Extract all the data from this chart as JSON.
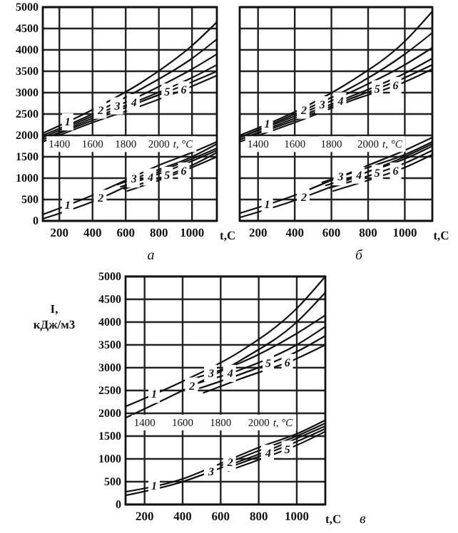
{
  "chart_data": [
    {
      "type": "line",
      "xlabel": "t,C",
      "x2label": "t, °C",
      "annotations": [
        "а"
      ],
      "xlim": [
        100,
        1150
      ],
      "xticks": [
        200,
        400,
        600,
        800,
        1000
      ],
      "x2lim": [
        1300,
        2350
      ],
      "x2ticks": [
        1400,
        1600,
        1800,
        2000
      ],
      "ylim": [
        0,
        5000
      ],
      "yticks": [
        0,
        500,
        1000,
        1500,
        2000,
        2500,
        3000,
        3500,
        4000,
        4500,
        5000
      ],
      "grid": true,
      "series": [
        {
          "name": "1",
          "color": "#111111",
          "axis": "x2",
          "x": [
            1300,
            1600,
            1900,
            2200,
            2350
          ],
          "values": [
            2050,
            2600,
            3250,
            4100,
            4650
          ]
        },
        {
          "name": "2",
          "color": "#111111",
          "axis": "x2",
          "x": [
            1300,
            1600,
            1900,
            2200,
            2350
          ],
          "values": [
            2000,
            2500,
            3100,
            3800,
            4250
          ]
        },
        {
          "name": "3",
          "color": "#111111",
          "axis": "x2",
          "x": [
            1300,
            1600,
            1900,
            2200,
            2350
          ],
          "values": [
            1950,
            2450,
            2950,
            3550,
            3900
          ]
        },
        {
          "name": "4",
          "color": "#111111",
          "axis": "x2",
          "x": [
            1300,
            1600,
            1900,
            2200,
            2350
          ],
          "values": [
            1900,
            2400,
            2850,
            3350,
            3650
          ]
        },
        {
          "name": "5",
          "color": "#111111",
          "axis": "x2",
          "x": [
            1300,
            1600,
            1900,
            2200,
            2350
          ],
          "values": [
            1900,
            2350,
            2800,
            3250,
            3500
          ]
        },
        {
          "name": "6",
          "color": "#111111",
          "axis": "x2",
          "x": [
            1300,
            1600,
            1900,
            2200,
            2350
          ],
          "values": [
            1850,
            2300,
            2700,
            3150,
            3400
          ]
        },
        {
          "name": "1",
          "color": "#111111",
          "x": [
            100,
            400,
            600,
            800,
            1000,
            1150
          ],
          "values": [
            150,
            600,
            950,
            1300,
            1600,
            1850
          ]
        },
        {
          "name": "2",
          "color": "#111111",
          "x": [
            100,
            400,
            600,
            800,
            1000,
            1150
          ],
          "values": [
            50,
            450,
            800,
            1150,
            1450,
            1700
          ]
        },
        {
          "name": "3",
          "color": "#111111",
          "x": [
            550,
            800,
            1000,
            1150
          ],
          "values": [
            850,
            1200,
            1500,
            1800
          ]
        },
        {
          "name": "4",
          "color": "#111111",
          "x": [
            570,
            800,
            1000,
            1150
          ],
          "values": [
            800,
            1100,
            1400,
            1650
          ]
        },
        {
          "name": "5",
          "color": "#111111",
          "x": [
            590,
            800,
            1000,
            1150
          ],
          "values": [
            750,
            1000,
            1300,
            1600
          ]
        },
        {
          "name": "6",
          "color": "#111111",
          "x": [
            610,
            800,
            1000,
            1150
          ],
          "values": [
            700,
            950,
            1250,
            1500
          ]
        }
      ]
    },
    {
      "type": "line",
      "xlabel": "t,C",
      "x2label": "t, °C",
      "annotations": [
        "б"
      ],
      "xlim": [
        100,
        1150
      ],
      "xticks": [
        200,
        400,
        600,
        800,
        1000
      ],
      "x2lim": [
        1300,
        2350
      ],
      "x2ticks": [
        1400,
        1600,
        1800,
        2000
      ],
      "ylim": [
        0,
        5000
      ],
      "yticks": [
        0,
        500,
        1000,
        1500,
        2000,
        2500,
        3000,
        3500,
        4000,
        4500,
        5000
      ],
      "grid": true,
      "tick_labels": "x",
      "series": [
        {
          "name": "1",
          "color": "#111111",
          "axis": "x2",
          "x": [
            1300,
            1600,
            1900,
            2200,
            2350
          ],
          "values": [
            2000,
            2550,
            3250,
            4200,
            4900
          ]
        },
        {
          "name": "2",
          "color": "#111111",
          "axis": "x2",
          "x": [
            1300,
            1600,
            1900,
            2200,
            2350
          ],
          "values": [
            1950,
            2500,
            3100,
            3900,
            4400
          ]
        },
        {
          "name": "3",
          "color": "#111111",
          "axis": "x2",
          "x": [
            1300,
            1600,
            1900,
            2200,
            2350
          ],
          "values": [
            1950,
            2450,
            3000,
            3650,
            4050
          ]
        },
        {
          "name": "4",
          "color": "#111111",
          "axis": "x2",
          "x": [
            1300,
            1600,
            1900,
            2200,
            2350
          ],
          "values": [
            1900,
            2400,
            2900,
            3450,
            3800
          ]
        },
        {
          "name": "5",
          "color": "#111111",
          "axis": "x2",
          "x": [
            1300,
            1600,
            1900,
            2200,
            2350
          ],
          "values": [
            1900,
            2350,
            2850,
            3350,
            3650
          ]
        },
        {
          "name": "6",
          "color": "#111111",
          "axis": "x2",
          "x": [
            1300,
            1600,
            1900,
            2200,
            2350
          ],
          "values": [
            1850,
            2300,
            2800,
            3250,
            3550
          ]
        },
        {
          "name": "1",
          "color": "#111111",
          "x": [
            100,
            400,
            600,
            800,
            1000,
            1150
          ],
          "values": [
            180,
            600,
            950,
            1300,
            1650,
            1950
          ]
        },
        {
          "name": "2",
          "color": "#111111",
          "x": [
            100,
            400,
            600,
            800,
            1000,
            1150
          ],
          "values": [
            80,
            480,
            800,
            1150,
            1500,
            1800
          ]
        },
        {
          "name": "3",
          "color": "#111111",
          "x": [
            550,
            800,
            1000,
            1150
          ],
          "values": [
            900,
            1250,
            1550,
            1850
          ]
        },
        {
          "name": "4",
          "color": "#111111",
          "x": [
            570,
            800,
            1000,
            1150
          ],
          "values": [
            830,
            1150,
            1450,
            1750
          ]
        },
        {
          "name": "5",
          "color": "#111111",
          "x": [
            590,
            800,
            1000,
            1150
          ],
          "values": [
            770,
            1050,
            1350,
            1650
          ]
        },
        {
          "name": "6",
          "color": "#111111",
          "x": [
            610,
            800,
            1000,
            1150
          ],
          "values": [
            700,
            950,
            1250,
            1550
          ]
        }
      ]
    },
    {
      "type": "line",
      "xlabel": "t,C",
      "x2label": "t, °C",
      "ylabel": "I, кДж/м3",
      "annotations": [
        "в"
      ],
      "xlim": [
        100,
        1150
      ],
      "xticks": [
        200,
        400,
        600,
        800,
        1000
      ],
      "x2lim": [
        1300,
        2350
      ],
      "x2ticks": [
        1400,
        1600,
        1800,
        2000
      ],
      "ylim": [
        0,
        5000
      ],
      "yticks": [
        0,
        500,
        1000,
        1500,
        2000,
        2500,
        3000,
        3500,
        4000,
        4500,
        5000
      ],
      "grid": true,
      "series": [
        {
          "name": "1",
          "color": "#111111",
          "axis": "x2",
          "x": [
            1300,
            1600,
            1900,
            2200,
            2350
          ],
          "values": [
            2150,
            2700,
            3350,
            4300,
            5000
          ]
        },
        {
          "name": "2",
          "color": "#111111",
          "axis": "x2",
          "x": [
            1300,
            1600,
            1900,
            2200,
            2350
          ],
          "values": [
            1900,
            2500,
            3150,
            4000,
            4650
          ]
        },
        {
          "name": "3",
          "color": "#111111",
          "axis": "x2",
          "x": [
            1650,
            1900,
            2200,
            2350
          ],
          "values": [
            2750,
            3100,
            3750,
            4150
          ]
        },
        {
          "name": "4",
          "color": "#111111",
          "axis": "x2",
          "x": [
            1670,
            1900,
            2200,
            2350
          ],
          "values": [
            2650,
            2950,
            3500,
            3900
          ]
        },
        {
          "name": "5",
          "color": "#111111",
          "axis": "x2",
          "x": [
            1690,
            1900,
            2200,
            2350
          ],
          "values": [
            2550,
            2850,
            3350,
            3700
          ]
        },
        {
          "name": "6",
          "color": "#111111",
          "axis": "x2",
          "x": [
            1710,
            1900,
            2200,
            2350
          ],
          "values": [
            2450,
            2750,
            3200,
            3500
          ]
        },
        {
          "name": "1",
          "color": "#111111",
          "x": [
            100,
            400,
            600,
            800,
            1000,
            1150
          ],
          "values": [
            280,
            560,
            900,
            1250,
            1550,
            1850
          ]
        },
        {
          "name": "2",
          "color": "#111111",
          "x": [
            600,
            800,
            1000,
            1150
          ],
          "values": [
            850,
            1180,
            1500,
            1780
          ]
        },
        {
          "name": "3",
          "color": "#111111",
          "x": [
            100,
            400,
            600,
            800,
            1000,
            1150
          ],
          "values": [
            200,
            500,
            800,
            1100,
            1450,
            1720
          ]
        },
        {
          "name": "4",
          "color": "#111111",
          "x": [
            620,
            800,
            1000,
            1150
          ],
          "values": [
            780,
            1050,
            1380,
            1660
          ]
        },
        {
          "name": "5",
          "color": "#111111",
          "x": [
            640,
            800,
            1000,
            1150
          ],
          "values": [
            740,
            980,
            1300,
            1600
          ]
        }
      ]
    }
  ]
}
